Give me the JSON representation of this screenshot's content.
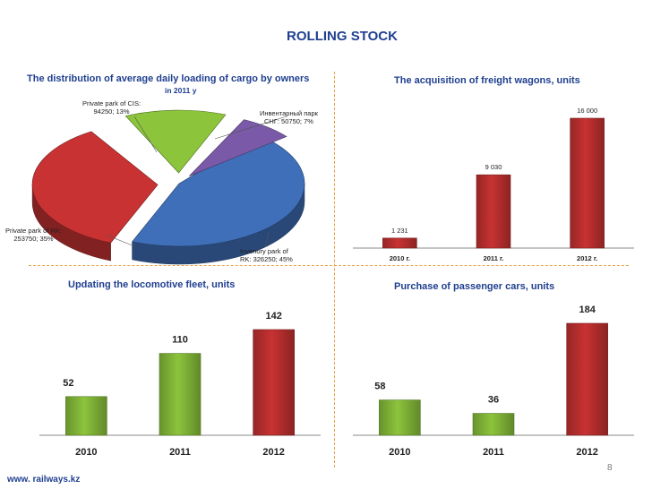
{
  "page": {
    "title": "ROLLING STOCK",
    "footer": "www. railways.kz",
    "page_number": "8"
  },
  "colors": {
    "title": "#1f3f8f",
    "red": "#c83232",
    "green": "#8cc43c",
    "purple": "#7a5aa8",
    "blue": "#3f6fb8",
    "divider": "#e8a040"
  },
  "chart_data": [
    {
      "type": "pie",
      "title": "The distribution of average daily loading of cargo by owners",
      "subtitle": "in 2011 y",
      "slices": [
        {
          "label_line1": "Invenory park of",
          "label_line2": "RK: 326250; 45%",
          "value": 326250,
          "percent": 45,
          "color": "blue"
        },
        {
          "label_line1": "Private park of RK:",
          "label_line2": "253750; 35%",
          "value": 253750,
          "percent": 35,
          "color": "red"
        },
        {
          "label_line1": "Private park of CIS:",
          "label_line2": "94250; 13%",
          "value": 94250,
          "percent": 13,
          "color": "green"
        },
        {
          "label_line1": "Инвентарный парк",
          "label_line2": "СНГ: 50750; 7%",
          "value": 50750,
          "percent": 7,
          "color": "purple"
        }
      ]
    },
    {
      "type": "bar",
      "title": "The acquisition of freight wagons, units",
      "categories": [
        "2010 г.",
        "2011 г.",
        "2012 г."
      ],
      "values": [
        1231,
        9030,
        16000
      ],
      "value_labels": [
        "1 231",
        "9 030",
        "16 000"
      ],
      "colors": [
        "red",
        "red",
        "red"
      ],
      "ylim": [
        0,
        16000
      ]
    },
    {
      "type": "bar",
      "title": "Updating the locomotive fleet, units",
      "categories": [
        "2010",
        "2011",
        "2012"
      ],
      "values": [
        52,
        110,
        142
      ],
      "value_labels": [
        "52",
        "110",
        "142"
      ],
      "colors": [
        "green",
        "green",
        "red"
      ],
      "ylim": [
        0,
        142
      ]
    },
    {
      "type": "bar",
      "title": "Purchase of passenger cars, units",
      "categories": [
        "2010",
        "2011",
        "2012"
      ],
      "values": [
        58,
        36,
        184
      ],
      "value_labels": [
        "58",
        "36",
        "184"
      ],
      "colors": [
        "green",
        "green",
        "red"
      ],
      "ylim": [
        0,
        184
      ]
    }
  ]
}
